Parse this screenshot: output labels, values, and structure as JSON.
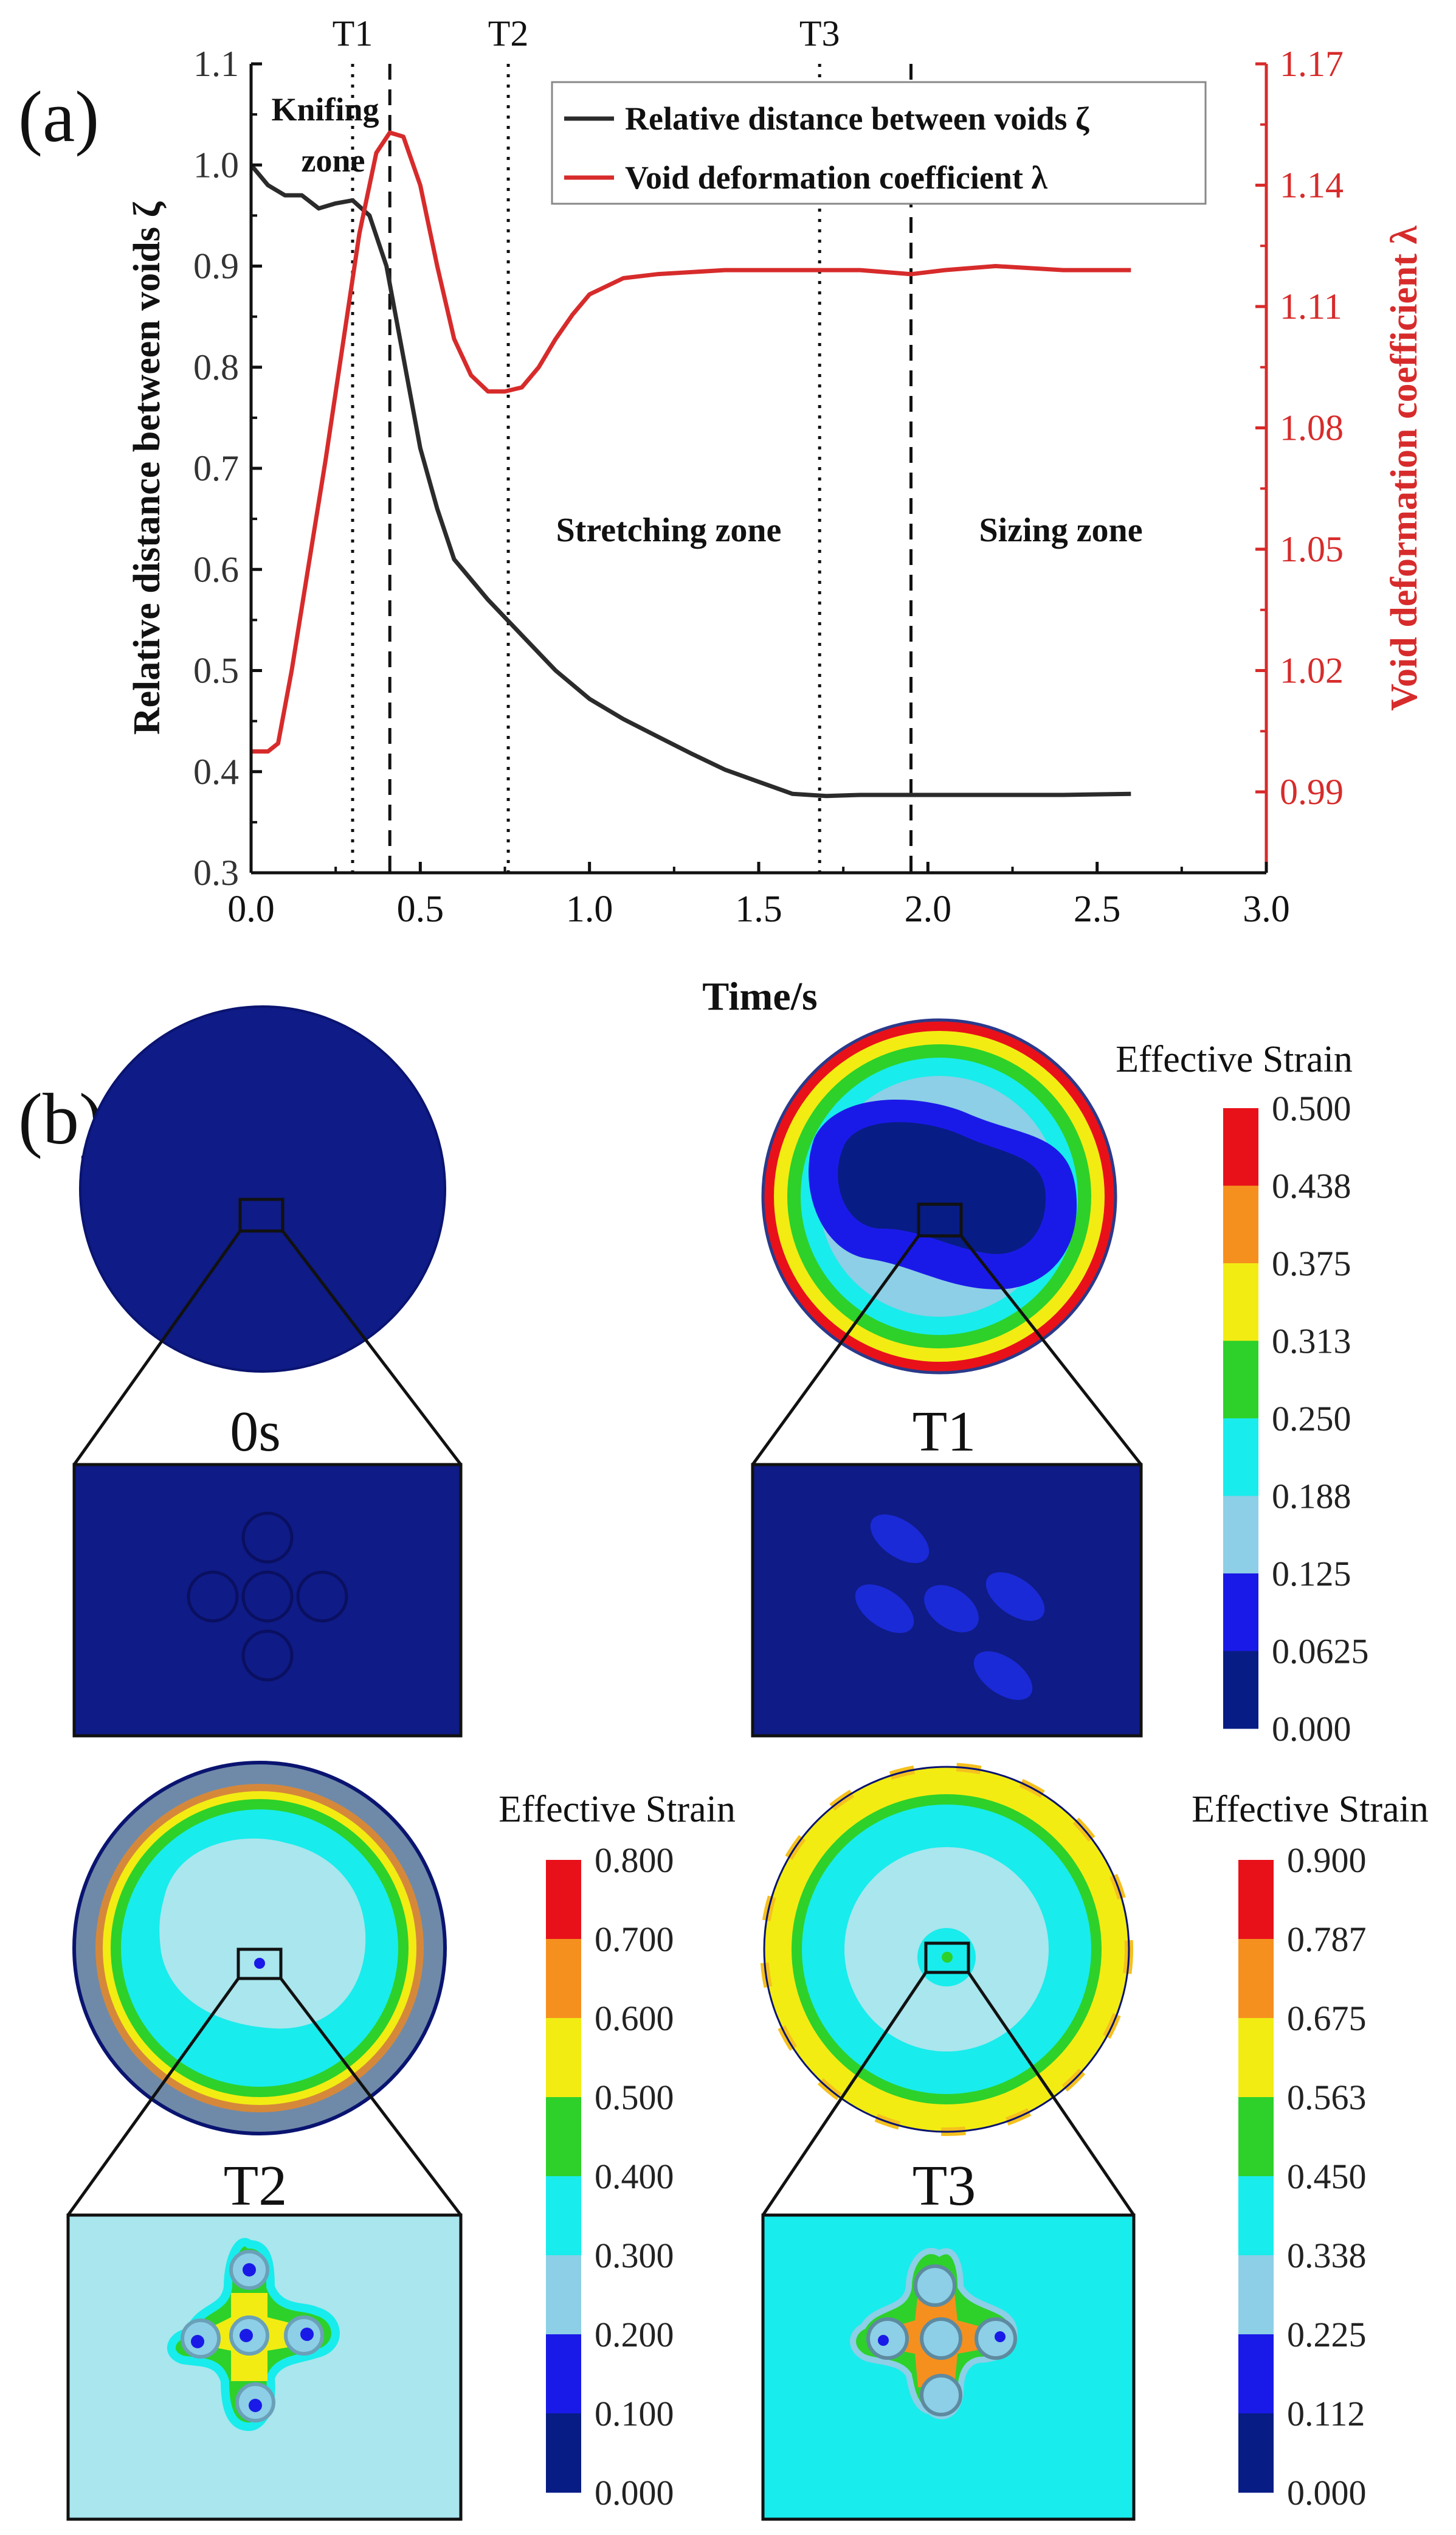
{
  "panel_a": {
    "label": "(a)",
    "chart_data": {
      "type": "line",
      "title": "",
      "xlabel": "Time/s",
      "ylabel_left": "Relative distance between voids ζ",
      "ylabel_right": "Void deformation coefficient λ",
      "xlim": [
        0.0,
        3.0
      ],
      "ylim_left": [
        0.3,
        1.1
      ],
      "ylim_right": [
        0.97,
        1.17
      ],
      "x_ticks": [
        "0.0",
        "0.5",
        "1.0",
        "1.5",
        "2.0",
        "2.5",
        "3.0"
      ],
      "x_tick_values": [
        0.0,
        0.5,
        1.0,
        1.5,
        2.0,
        2.5,
        3.0
      ],
      "y_left_ticks": [
        "0.3",
        "0.4",
        "0.5",
        "0.6",
        "0.7",
        "0.8",
        "0.9",
        "1.0",
        "1.1"
      ],
      "y_left_tick_values": [
        0.3,
        0.4,
        0.5,
        0.6,
        0.7,
        0.8,
        0.9,
        1.0,
        1.1
      ],
      "y_right_ticks": [
        "0.99",
        "1.02",
        "1.05",
        "1.08",
        "1.11",
        "1.14",
        "1.17"
      ],
      "y_right_tick_values": [
        0.99,
        1.02,
        1.05,
        1.08,
        1.11,
        1.14,
        1.17
      ],
      "series": [
        {
          "name": "Relative distance between voids ζ",
          "axis": "left",
          "color": "#2b2b2b",
          "x": [
            0.0,
            0.05,
            0.1,
            0.15,
            0.2,
            0.25,
            0.3,
            0.35,
            0.4,
            0.45,
            0.5,
            0.55,
            0.6,
            0.7,
            0.8,
            0.9,
            1.0,
            1.1,
            1.2,
            1.3,
            1.4,
            1.5,
            1.6,
            1.7,
            1.8,
            2.0,
            2.2,
            2.4,
            2.6
          ],
          "y": [
            1.0,
            0.98,
            0.97,
            0.97,
            0.957,
            0.962,
            0.965,
            0.95,
            0.9,
            0.81,
            0.72,
            0.66,
            0.61,
            0.57,
            0.535,
            0.5,
            0.472,
            0.452,
            0.435,
            0.418,
            0.402,
            0.39,
            0.378,
            0.376,
            0.377,
            0.377,
            0.377,
            0.377,
            0.378
          ]
        },
        {
          "name": "Void deformation coefficient λ",
          "axis": "right",
          "color": "#d72b2b",
          "x": [
            0.0,
            0.05,
            0.08,
            0.12,
            0.17,
            0.22,
            0.27,
            0.32,
            0.37,
            0.41,
            0.45,
            0.5,
            0.55,
            0.6,
            0.65,
            0.7,
            0.75,
            0.8,
            0.85,
            0.9,
            0.95,
            1.0,
            1.1,
            1.2,
            1.4,
            1.6,
            1.8,
            1.95,
            2.05,
            2.2,
            2.4,
            2.6
          ],
          "y": [
            1.0,
            1.0,
            1.002,
            1.02,
            1.046,
            1.072,
            1.1,
            1.128,
            1.148,
            1.153,
            1.152,
            1.14,
            1.12,
            1.102,
            1.093,
            1.089,
            1.089,
            1.09,
            1.095,
            1.102,
            1.108,
            1.113,
            1.117,
            1.118,
            1.119,
            1.119,
            1.119,
            1.118,
            1.119,
            1.12,
            1.119,
            1.119
          ]
        }
      ],
      "markers": [
        {
          "label": "T1",
          "x": 0.3,
          "style": "dotted"
        },
        {
          "label": "",
          "x": 0.41,
          "style": "dashed"
        },
        {
          "label": "T2",
          "x": 0.76,
          "style": "dotted"
        },
        {
          "label": "T3",
          "x": 1.68,
          "style": "dotted"
        },
        {
          "label": "",
          "x": 1.95,
          "style": "dashed"
        }
      ],
      "zone_labels": {
        "knifing_1": "Knifing",
        "knifing_2": "zone",
        "stretching": "Stretching zone",
        "sizing": "Sizing zone"
      },
      "legend": {
        "position": "top-right",
        "entries": [
          "Relative distance between voids ζ",
          "Void deformation coefficient λ"
        ]
      }
    }
  },
  "panel_b": {
    "label": "(b)",
    "scale_title": "Effective Strain",
    "scale_colors": [
      "#e8111a",
      "#f5901e",
      "#f2ec13",
      "#2dd12a",
      "#19ecec",
      "#8ccfe6",
      "#1a1ae8",
      "#081c85"
    ],
    "legends": {
      "t1": [
        "0.500",
        "0.438",
        "0.375",
        "0.313",
        "0.250",
        "0.188",
        "0.125",
        "0.0625",
        "0.000"
      ],
      "t2": [
        "0.800",
        "0.700",
        "0.600",
        "0.500",
        "0.400",
        "0.300",
        "0.200",
        "0.100",
        "0.000"
      ],
      "t3": [
        "0.900",
        "0.787",
        "0.675",
        "0.563",
        "0.450",
        "0.338",
        "0.225",
        "0.112",
        "0.000"
      ]
    },
    "states": {
      "s0": "0s",
      "t1": "T1",
      "t2": "T2",
      "t3": "T3"
    }
  }
}
